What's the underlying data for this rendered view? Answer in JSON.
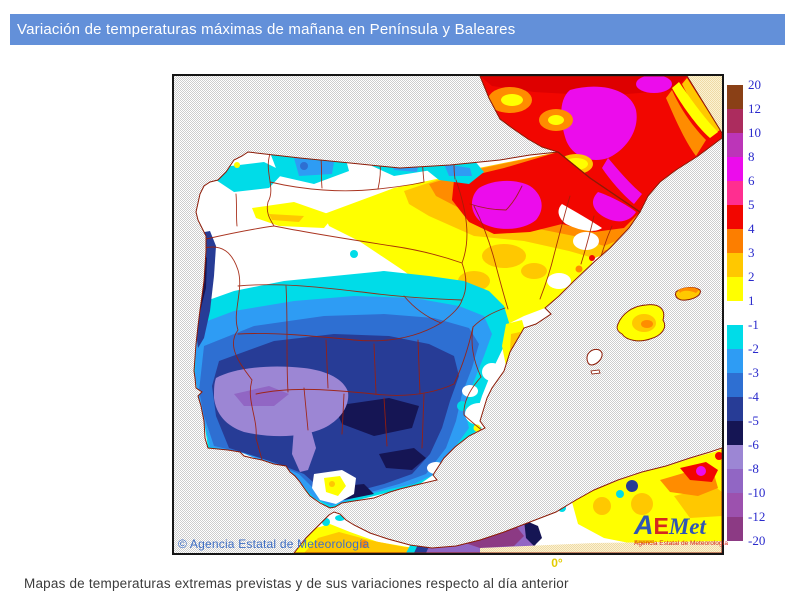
{
  "header": {
    "title": "Variación de temperaturas máximas de mañana en Península y Baleares"
  },
  "map": {
    "copyright": "© Agencia Estatal de Meteorología",
    "longitude_label": "0°",
    "logo": {
      "letter_a": "A",
      "letter_e": "E",
      "letters_met": "Met",
      "subtitle": "Agencia Estatal de Meteorología"
    }
  },
  "legend": {
    "positive": {
      "boundaries": [
        "20",
        "12",
        "10",
        "8",
        "6",
        "5",
        "4",
        "3",
        "2",
        "1"
      ],
      "colors": [
        "#8A4016",
        "#AC2C5E",
        "#BC35B8",
        "#EC0CEC",
        "#FF2E90",
        "#F20600",
        "#FC7E00",
        "#FFC800",
        "#FFFF00"
      ]
    },
    "negative": {
      "boundaries": [
        "-1",
        "-2",
        "-3",
        "-4",
        "-5",
        "-6",
        "-8",
        "-10",
        "-12",
        "-20"
      ],
      "colors": [
        "#00DCE8",
        "#2E9CF4",
        "#2E6FD2",
        "#273C96",
        "#151554",
        "#9C86D4",
        "#9166C4",
        "#9C51AE",
        "#8C3A84"
      ]
    }
  },
  "colors": {
    "header_bg": "#6390D9",
    "header_text": "#FFFFFF",
    "legend_label": "#2A2ACC",
    "copyright_text": "#3F6FC4",
    "caption_text": "#3B3B3B",
    "longitude_label": "#E3CC00",
    "logo_blue": "#2F55B5",
    "logo_red": "#D5281E",
    "logo_yellow": "#F6C500"
  },
  "caption": {
    "text": "Mapas de temperaturas extremas previstas y de sus variaciones respecto al día anterior"
  }
}
